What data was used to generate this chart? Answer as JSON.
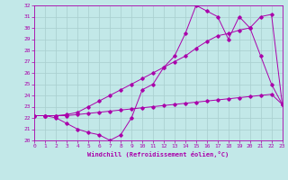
{
  "background_color": "#c2e8e8",
  "grid_color": "#a8cece",
  "line_color": "#aa00aa",
  "xlabel": "Windchill (Refroidissement éolien,°C)",
  "xlim": [
    0,
    23
  ],
  "ylim": [
    20,
    32
  ],
  "yticks": [
    20,
    21,
    22,
    23,
    24,
    25,
    26,
    27,
    28,
    29,
    30,
    31,
    32
  ],
  "xticks": [
    0,
    1,
    2,
    3,
    4,
    5,
    6,
    7,
    8,
    9,
    10,
    11,
    12,
    13,
    14,
    15,
    16,
    17,
    18,
    19,
    20,
    21,
    22,
    23
  ],
  "series1_x": [
    0,
    1,
    2,
    3,
    4,
    5,
    6,
    7,
    8,
    9,
    10,
    11,
    12,
    13,
    14,
    15,
    16,
    17,
    18,
    19,
    20,
    21,
    22,
    23
  ],
  "series1_y": [
    22.2,
    22.2,
    22.2,
    22.2,
    22.3,
    22.4,
    22.5,
    22.6,
    22.7,
    22.8,
    22.9,
    23.0,
    23.1,
    23.2,
    23.3,
    23.4,
    23.5,
    23.6,
    23.7,
    23.8,
    23.9,
    24.0,
    24.1,
    23.2
  ],
  "series2_x": [
    0,
    1,
    2,
    3,
    4,
    5,
    6,
    7,
    8,
    9,
    10,
    11,
    12,
    13,
    14,
    15,
    16,
    17,
    18,
    19,
    20,
    21,
    22,
    23
  ],
  "series2_y": [
    22.2,
    22.2,
    22.0,
    21.5,
    21.0,
    20.7,
    20.5,
    20.0,
    20.5,
    22.0,
    24.5,
    25.0,
    26.5,
    27.5,
    29.5,
    32.0,
    31.5,
    31.0,
    29.0,
    31.0,
    30.0,
    27.5,
    25.0,
    23.2
  ],
  "series3_x": [
    0,
    1,
    2,
    3,
    4,
    5,
    6,
    7,
    8,
    9,
    10,
    11,
    12,
    13,
    14,
    15,
    16,
    17,
    18,
    19,
    20,
    21,
    22,
    23
  ],
  "series3_y": [
    22.2,
    22.2,
    22.2,
    22.3,
    22.5,
    23.0,
    23.5,
    24.0,
    24.5,
    25.0,
    25.5,
    26.0,
    26.5,
    27.0,
    27.5,
    28.2,
    28.8,
    29.3,
    29.5,
    29.8,
    30.0,
    31.0,
    31.2,
    23.2
  ]
}
